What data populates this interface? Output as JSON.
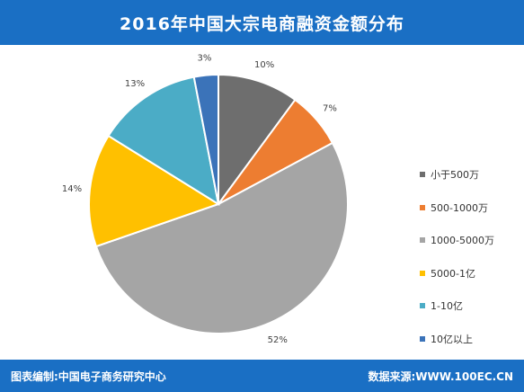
{
  "header": {
    "title": "2016年中国大宗电商融资金额分布"
  },
  "footer": {
    "left_text": "图表编制:中国电子商务研究中心",
    "right_text": "数据来源:WWW.100EC.CN"
  },
  "colors": {
    "header_bg": "#1a6fc4"
  },
  "chart_data": {
    "type": "pie",
    "title": "2016年中国大宗电商融资金额分布",
    "legend_position": "right",
    "categories": [
      "小于500万",
      "500-1000万",
      "1000-5000万",
      "5000-1亿",
      "1-10亿",
      "10亿以上"
    ],
    "values": [
      10,
      7,
      52,
      14,
      13,
      3
    ],
    "labels": [
      "10%",
      "7%",
      "52%",
      "14%",
      "13%",
      "3%"
    ],
    "colors": [
      "#6e6e6e",
      "#ed7d31",
      "#a5a5a5",
      "#ffc000",
      "#4bacc6",
      "#3b73b9"
    ]
  }
}
